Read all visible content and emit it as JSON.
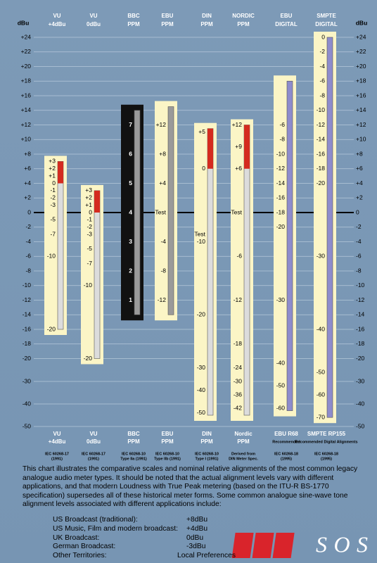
{
  "chart_data": {
    "type": "meter",
    "axis_label": "dBu",
    "yticks": [
      {
        "value": 24,
        "label": "+24"
      },
      {
        "value": 22,
        "label": "+22"
      },
      {
        "value": 20,
        "label": "+20"
      },
      {
        "value": 18,
        "label": "+18"
      },
      {
        "value": 16,
        "label": "+16"
      },
      {
        "value": 14,
        "label": "+14"
      },
      {
        "value": 12,
        "label": "+12"
      },
      {
        "value": 10,
        "label": "+10"
      },
      {
        "value": 8,
        "label": "+8"
      },
      {
        "value": 6,
        "label": "+6"
      },
      {
        "value": 4,
        "label": "+4"
      },
      {
        "value": 2,
        "label": "+2"
      },
      0,
      -2,
      -4,
      -6,
      -8,
      -10,
      -12,
      -14,
      -16,
      -18,
      -20,
      -30,
      -40,
      -50
    ],
    "ylim": [
      -50,
      24
    ],
    "grid": true,
    "meters": [
      {
        "header": [
          "VU",
          "+4dBu"
        ],
        "footer": [
          "VU",
          "+4dBu"
        ],
        "standard": [
          "IEC 60268-17",
          "(1991)"
        ],
        "bar": [
          7,
          -16
        ],
        "peak": [
          7,
          4
        ],
        "box_color": "#fbf5c6",
        "bar_color": "#dcdcdc",
        "label_color": "#000000",
        "scale": [
          {
            "value": 7,
            "label": "+3"
          },
          {
            "value": 6,
            "label": "+2"
          },
          {
            "value": 5,
            "label": "+1"
          },
          {
            "value": 4,
            "label": "0"
          },
          {
            "value": 3,
            "label": "-1"
          },
          {
            "value": 2,
            "label": "-2"
          },
          {
            "value": 1,
            "label": "-3"
          },
          {
            "value": -1,
            "label": "-5"
          },
          {
            "value": -3,
            "label": "-7"
          },
          {
            "value": -6,
            "label": "-10"
          },
          {
            "value": -16,
            "label": "-20"
          }
        ]
      },
      {
        "header": [
          "VU",
          "0dBu"
        ],
        "footer": [
          "VU",
          "0dBu"
        ],
        "standard": [
          "IEC 60268-17",
          "(1991)"
        ],
        "bar": [
          3,
          -20
        ],
        "peak": [
          3,
          0
        ],
        "box_color": "#fbf5c6",
        "bar_color": "#dcdcdc",
        "label_color": "#000000",
        "scale": [
          {
            "value": 3,
            "label": "+3"
          },
          {
            "value": 2,
            "label": "+2"
          },
          {
            "value": 1,
            "label": "+1"
          },
          0,
          -1,
          -2,
          -3,
          -5,
          -7,
          -10,
          -20
        ]
      },
      {
        "header": [
          "BBC",
          "PPM"
        ],
        "footer": [
          "BBC",
          "PPM"
        ],
        "standard": [
          "IEC 60268-10",
          "Type IIa (1991)"
        ],
        "bar": [
          14,
          -14
        ],
        "box_color": "#111111",
        "bar_color": "#9a9a9a",
        "label_color": "#ffffff",
        "scale": [
          {
            "value": 12,
            "label": "7"
          },
          {
            "value": 8,
            "label": "6"
          },
          {
            "value": 4,
            "label": "5"
          },
          {
            "value": 0,
            "label": "4"
          },
          {
            "value": -4,
            "label": "3"
          },
          {
            "value": -8,
            "label": "2"
          },
          {
            "value": -12,
            "label": "1"
          }
        ]
      },
      {
        "header": [
          "EBU",
          "PPM"
        ],
        "footer": [
          "EBU",
          "PPM"
        ],
        "standard": [
          "IEC 60268-10",
          "Type IIb (1991)"
        ],
        "bar": [
          14.5,
          -14
        ],
        "box_color": "#fbf5c6",
        "bar_color": "#9a9a9a",
        "label_color": "#000000",
        "scale": [
          {
            "value": 12,
            "label": "+12"
          },
          {
            "value": 8,
            "label": "+8"
          },
          {
            "value": 4,
            "label": "+4"
          },
          {
            "value": 0,
            "label": "Test"
          },
          -4,
          -8,
          -12
        ]
      },
      {
        "header": [
          "DIN",
          "PPM"
        ],
        "footer": [
          "DIN",
          "PPM"
        ],
        "standard": [
          "IEC 60268-10",
          "Type I (1991)"
        ],
        "bar": [
          11.5,
          -45
        ],
        "peak": [
          11.5,
          6
        ],
        "box_color": "#fbf5c6",
        "bar_color": "#dcdcdc",
        "label_color": "#000000",
        "scale": [
          {
            "value": 11,
            "label": "+5"
          },
          {
            "value": 6,
            "label": "0"
          },
          {
            "value": -3,
            "label": "Test"
          },
          {
            "value": -4,
            "label": "-10"
          },
          {
            "value": -14,
            "label": "-20"
          },
          {
            "value": -24,
            "label": "-30"
          },
          {
            "value": -34,
            "label": "-40"
          },
          {
            "value": -44,
            "label": "-50"
          }
        ]
      },
      {
        "header": [
          "NORDIC",
          "PPM"
        ],
        "footer": [
          "Nordic",
          "PPM"
        ],
        "standard": [
          "Derived from",
          "DIN Meter Spec."
        ],
        "bar": [
          12,
          -45
        ],
        "peak": [
          12,
          6
        ],
        "box_color": "#fbf5c6",
        "bar_color": "#dcdcdc",
        "label_color": "#000000",
        "scale": [
          {
            "value": 12,
            "label": "+12"
          },
          {
            "value": 9,
            "label": "+9"
          },
          {
            "value": 6,
            "label": "+6"
          },
          {
            "value": 0,
            "label": "Test"
          },
          -6,
          -12,
          -18,
          -24,
          -30,
          -36,
          -42
        ]
      },
      {
        "header": [
          "EBU",
          "DIGITAL"
        ],
        "footer": [
          "EBU R68",
          "Recommended"
        ],
        "standard": [
          "IEC 60268-18",
          "(1995)"
        ],
        "bar": [
          18,
          -43
        ],
        "box_color": "#fbf5c6",
        "bar_color": "#8e8ccc",
        "label_color": "#000000",
        "scale": [
          {
            "value": 12,
            "label": "-6"
          },
          {
            "value": 10,
            "label": "-8"
          },
          {
            "value": 8,
            "label": "-10"
          },
          {
            "value": 6,
            "label": "-12"
          },
          {
            "value": 4,
            "label": "-14"
          },
          {
            "value": 2,
            "label": "-16"
          },
          {
            "value": 0,
            "label": "-18"
          },
          {
            "value": -2,
            "label": "-20"
          },
          {
            "value": -12,
            "label": "-30"
          },
          {
            "value": -22,
            "label": "-40"
          },
          {
            "value": -32,
            "label": "-50"
          },
          {
            "value": -42,
            "label": "-60"
          }
        ]
      },
      {
        "header": [
          "SMPTE",
          "DIGITAL"
        ],
        "footer": [
          "SMPTE RP155",
          "Recommended Digital Alignments"
        ],
        "standard": [
          "IEC 60268-18",
          "(1995)"
        ],
        "bar": [
          24,
          -46
        ],
        "box_color": "#fbf5c6",
        "bar_color": "#8e8ccc",
        "label_color": "#000000",
        "scale": [
          {
            "value": 24,
            "label": "0"
          },
          {
            "value": 22,
            "label": "-2"
          },
          {
            "value": 20,
            "label": "-4"
          },
          {
            "value": 18,
            "label": "-6"
          },
          {
            "value": 16,
            "label": "-8"
          },
          {
            "value": 14,
            "label": "-10"
          },
          {
            "value": 12,
            "label": "-12"
          },
          {
            "value": 10,
            "label": "-14"
          },
          {
            "value": 8,
            "label": "-16"
          },
          {
            "value": 6,
            "label": "-18"
          },
          {
            "value": 4,
            "label": "-20"
          },
          {
            "value": -6,
            "label": "-30"
          },
          {
            "value": -16,
            "label": "-40"
          },
          {
            "value": -26,
            "label": "-50"
          },
          {
            "value": -36,
            "label": "-60"
          },
          {
            "value": -46,
            "label": "-70"
          }
        ]
      }
    ],
    "peak_color": "#d42b1f",
    "description": "This chart illustrates the comparative scales and nominal relative alignments of the most common legacy analogue audio meter types. It should be noted that the actual alignment levels vary with different applications, and that modern Loudness with True Peak metering (based on the ITU-R BS-1770 specification) supersedes all of these historical meter forms. Some common analogue sine-wave tone alignment levels associated with different applications include:",
    "alignments": [
      [
        "US Broadcast (traditional):",
        "+8dBu"
      ],
      [
        "US Music, Film and modern broadcast:",
        "+4dBu"
      ],
      [
        "UK Broadcast:",
        "0dBu"
      ],
      [
        "German Broadcast:",
        "-3dBu"
      ],
      [
        "Other Territories:",
        "Local Preferences"
      ]
    ],
    "logo": [
      "S",
      "O",
      "S"
    ]
  }
}
